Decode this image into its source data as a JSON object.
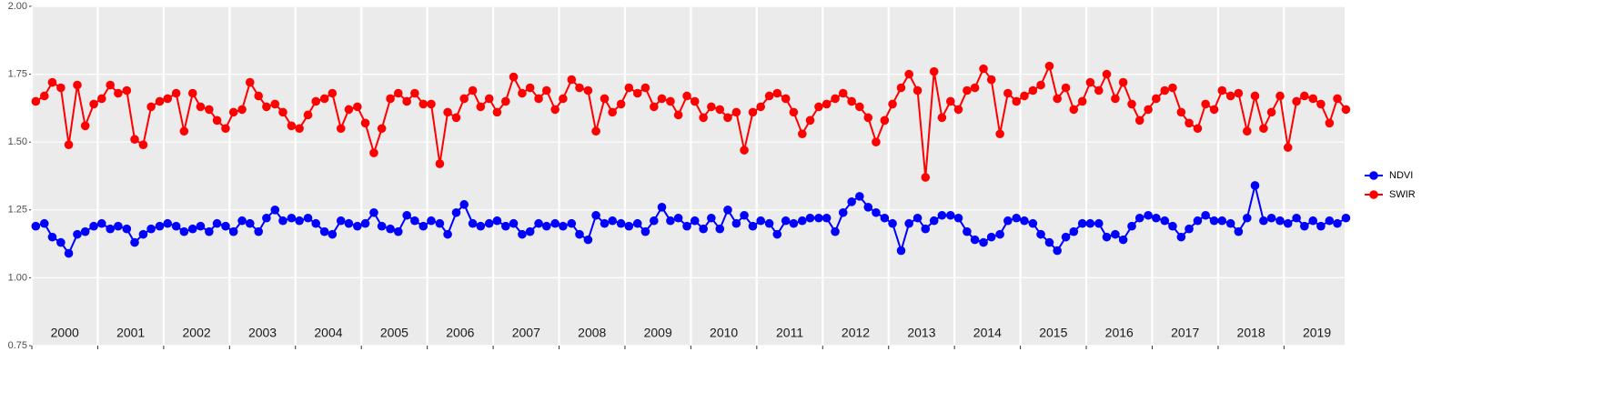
{
  "chart_data": {
    "type": "line",
    "x": [
      2000.06,
      2000.19,
      2000.31,
      2000.44,
      2000.56,
      2000.69,
      2000.81,
      2000.94,
      2001.06,
      2001.19,
      2001.31,
      2001.44,
      2001.56,
      2001.69,
      2001.81,
      2001.94,
      2002.06,
      2002.19,
      2002.31,
      2002.44,
      2002.56,
      2002.69,
      2002.81,
      2002.94,
      2003.06,
      2003.19,
      2003.31,
      2003.44,
      2003.56,
      2003.69,
      2003.81,
      2003.94,
      2004.06,
      2004.19,
      2004.31,
      2004.44,
      2004.56,
      2004.69,
      2004.81,
      2004.94,
      2005.06,
      2005.19,
      2005.31,
      2005.44,
      2005.56,
      2005.69,
      2005.81,
      2005.94,
      2006.06,
      2006.19,
      2006.31,
      2006.44,
      2006.56,
      2006.69,
      2006.81,
      2006.94,
      2007.06,
      2007.19,
      2007.31,
      2007.44,
      2007.56,
      2007.69,
      2007.81,
      2007.94,
      2008.06,
      2008.19,
      2008.31,
      2008.44,
      2008.56,
      2008.69,
      2008.81,
      2008.94,
      2009.06,
      2009.19,
      2009.31,
      2009.44,
      2009.56,
      2009.69,
      2009.81,
      2009.94,
      2010.06,
      2010.19,
      2010.31,
      2010.44,
      2010.56,
      2010.69,
      2010.81,
      2010.94,
      2011.06,
      2011.19,
      2011.31,
      2011.44,
      2011.56,
      2011.69,
      2011.81,
      2011.94,
      2012.06,
      2012.19,
      2012.31,
      2012.44,
      2012.56,
      2012.69,
      2012.81,
      2012.94,
      2013.06,
      2013.19,
      2013.31,
      2013.44,
      2013.56,
      2013.69,
      2013.81,
      2013.94,
      2014.06,
      2014.19,
      2014.31,
      2014.44,
      2014.56,
      2014.69,
      2014.81,
      2014.94,
      2015.06,
      2015.19,
      2015.31,
      2015.44,
      2015.56,
      2015.69,
      2015.81,
      2015.94,
      2016.06,
      2016.19,
      2016.31,
      2016.44,
      2016.56,
      2016.69,
      2016.81,
      2016.94,
      2017.06,
      2017.19,
      2017.31,
      2017.44,
      2017.56,
      2017.69,
      2017.81,
      2017.94,
      2018.06,
      2018.19,
      2018.31,
      2018.44,
      2018.56,
      2018.69,
      2018.81,
      2018.94,
      2019.06,
      2019.19,
      2019.31,
      2019.44,
      2019.56,
      2019.69,
      2019.81,
      2019.94
    ],
    "series": [
      {
        "name": "NDVI",
        "color": "#0000ff",
        "values": [
          1.19,
          1.2,
          1.15,
          1.13,
          1.09,
          1.16,
          1.17,
          1.19,
          1.2,
          1.18,
          1.19,
          1.18,
          1.13,
          1.16,
          1.18,
          1.19,
          1.2,
          1.19,
          1.17,
          1.18,
          1.19,
          1.17,
          1.2,
          1.19,
          1.17,
          1.21,
          1.2,
          1.17,
          1.22,
          1.25,
          1.21,
          1.22,
          1.21,
          1.22,
          1.2,
          1.17,
          1.16,
          1.21,
          1.2,
          1.19,
          1.2,
          1.24,
          1.19,
          1.18,
          1.17,
          1.23,
          1.21,
          1.19,
          1.21,
          1.2,
          1.16,
          1.24,
          1.27,
          1.2,
          1.19,
          1.2,
          1.21,
          1.19,
          1.2,
          1.16,
          1.17,
          1.2,
          1.19,
          1.2,
          1.19,
          1.2,
          1.16,
          1.14,
          1.23,
          1.2,
          1.21,
          1.2,
          1.19,
          1.2,
          1.17,
          1.21,
          1.26,
          1.21,
          1.22,
          1.19,
          1.21,
          1.18,
          1.22,
          1.18,
          1.25,
          1.2,
          1.23,
          1.19,
          1.21,
          1.2,
          1.16,
          1.21,
          1.2,
          1.21,
          1.22,
          1.22,
          1.22,
          1.17,
          1.24,
          1.28,
          1.3,
          1.26,
          1.24,
          1.22,
          1.2,
          1.1,
          1.2,
          1.22,
          1.18,
          1.21,
          1.23,
          1.23,
          1.22,
          1.17,
          1.14,
          1.13,
          1.15,
          1.16,
          1.21,
          1.22,
          1.21,
          1.2,
          1.16,
          1.13,
          1.1,
          1.15,
          1.17,
          1.2,
          1.2,
          1.2,
          1.15,
          1.16,
          1.14,
          1.19,
          1.22,
          1.23,
          1.22,
          1.21,
          1.19,
          1.15,
          1.18,
          1.21,
          1.23,
          1.21,
          1.21,
          1.2,
          1.17,
          1.22,
          1.34,
          1.21,
          1.22,
          1.21,
          1.2,
          1.22,
          1.19,
          1.21,
          1.19,
          1.21,
          1.2,
          1.22
        ]
      },
      {
        "name": "SWIR",
        "color": "#ff0000",
        "values": [
          1.65,
          1.67,
          1.72,
          1.7,
          1.49,
          1.71,
          1.56,
          1.64,
          1.66,
          1.71,
          1.68,
          1.69,
          1.51,
          1.49,
          1.63,
          1.65,
          1.66,
          1.68,
          1.54,
          1.68,
          1.63,
          1.62,
          1.58,
          1.55,
          1.61,
          1.62,
          1.72,
          1.67,
          1.63,
          1.64,
          1.61,
          1.56,
          1.55,
          1.6,
          1.65,
          1.66,
          1.68,
          1.55,
          1.62,
          1.63,
          1.57,
          1.46,
          1.55,
          1.66,
          1.68,
          1.65,
          1.68,
          1.64,
          1.64,
          1.42,
          1.61,
          1.59,
          1.66,
          1.69,
          1.63,
          1.66,
          1.61,
          1.65,
          1.74,
          1.68,
          1.7,
          1.66,
          1.69,
          1.62,
          1.66,
          1.73,
          1.7,
          1.69,
          1.54,
          1.66,
          1.61,
          1.64,
          1.7,
          1.68,
          1.7,
          1.63,
          1.66,
          1.65,
          1.6,
          1.67,
          1.65,
          1.59,
          1.63,
          1.62,
          1.59,
          1.61,
          1.47,
          1.61,
          1.63,
          1.67,
          1.68,
          1.66,
          1.61,
          1.53,
          1.58,
          1.63,
          1.64,
          1.66,
          1.68,
          1.65,
          1.63,
          1.59,
          1.5,
          1.58,
          1.64,
          1.7,
          1.75,
          1.69,
          1.37,
          1.76,
          1.59,
          1.65,
          1.62,
          1.69,
          1.7,
          1.77,
          1.73,
          1.53,
          1.68,
          1.65,
          1.67,
          1.69,
          1.71,
          1.78,
          1.66,
          1.7,
          1.62,
          1.65,
          1.72,
          1.69,
          1.75,
          1.66,
          1.72,
          1.64,
          1.58,
          1.62,
          1.66,
          1.69,
          1.7,
          1.61,
          1.57,
          1.55,
          1.64,
          1.62,
          1.69,
          1.67,
          1.68,
          1.54,
          1.67,
          1.55,
          1.61,
          1.67,
          1.48,
          1.65,
          1.67,
          1.66,
          1.64,
          1.57,
          1.66,
          1.62
        ]
      }
    ],
    "xlim": [
      2000,
      2019.92
    ],
    "xticks": [
      2000,
      2001,
      2002,
      2003,
      2004,
      2005,
      2006,
      2007,
      2008,
      2009,
      2010,
      2011,
      2012,
      2013,
      2014,
      2015,
      2016,
      2017,
      2018,
      2019
    ],
    "ylim": [
      0.75,
      2.0
    ],
    "yticks": [
      {
        "value": 0.75,
        "label": "0.75"
      },
      {
        "value": 1.0,
        "label": "1.00"
      },
      {
        "value": 1.25,
        "label": "1.25"
      },
      {
        "value": 1.5,
        "label": "1.50"
      },
      {
        "value": 1.75,
        "label": "1.75"
      },
      {
        "value": 2.0,
        "label": "2.00"
      }
    ],
    "grid": true,
    "legend": "right"
  }
}
